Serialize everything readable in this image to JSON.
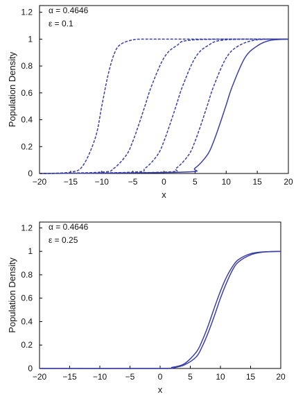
{
  "chart_data": [
    {
      "type": "line",
      "title": "",
      "xlabel": "x",
      "ylabel": "Population Density",
      "xlim": [
        -20,
        20
      ],
      "ylim": [
        0,
        1.25
      ],
      "xticks": [
        "−20",
        "−15",
        "−10",
        "−5",
        "0",
        "5",
        "10",
        "15",
        "20"
      ],
      "yticks": [
        "0",
        "0.2",
        "0.4",
        "0.6",
        "0.8",
        "1",
        "1.2"
      ],
      "annotations": [
        "α = 0.4646",
        "ε = 0.1"
      ],
      "grid": false,
      "line_color": "#3a3fa8",
      "series": [
        {
          "style": "dashed",
          "x": [
            -20,
            -15,
            -13,
            -11,
            -10,
            -9,
            -8,
            -7,
            -5,
            -3,
            0,
            20
          ],
          "y": [
            0.0,
            0.01,
            0.06,
            0.27,
            0.5,
            0.73,
            0.89,
            0.96,
            0.995,
            1.0,
            1.0,
            1.0
          ]
        },
        {
          "style": "dashed",
          "x": [
            -20,
            -10,
            -8,
            -6,
            -5,
            -4,
            -3,
            -2,
            0,
            2,
            5,
            20
          ],
          "y": [
            0.0,
            0.01,
            0.04,
            0.14,
            0.24,
            0.37,
            0.51,
            0.65,
            0.86,
            0.95,
            0.995,
            1.0
          ]
        },
        {
          "style": "dashed",
          "x": [
            -20,
            -5,
            -3,
            -1,
            0,
            1,
            2,
            3,
            5,
            7,
            10,
            20
          ],
          "y": [
            0.0,
            0.01,
            0.04,
            0.14,
            0.24,
            0.37,
            0.51,
            0.65,
            0.86,
            0.95,
            0.995,
            1.0
          ]
        },
        {
          "style": "dashed",
          "x": [
            -20,
            0,
            2,
            4,
            5,
            6,
            7,
            8,
            10,
            12,
            15,
            20
          ],
          "y": [
            0.0,
            0.01,
            0.04,
            0.14,
            0.24,
            0.37,
            0.51,
            0.65,
            0.86,
            0.95,
            0.995,
            1.0
          ]
        },
        {
          "style": "solid",
          "x": [
            -20,
            3,
            5,
            7,
            8,
            9,
            10,
            11,
            13,
            15,
            17,
            20
          ],
          "y": [
            0.0,
            0.01,
            0.04,
            0.14,
            0.24,
            0.37,
            0.51,
            0.65,
            0.86,
            0.95,
            0.99,
            1.0
          ]
        }
      ]
    },
    {
      "type": "line",
      "title": "",
      "xlabel": "x",
      "ylabel": "Population Density",
      "xlim": [
        -20,
        20
      ],
      "ylim": [
        0,
        1.25
      ],
      "xticks": [
        "−20",
        "−15",
        "−10",
        "−5",
        "0",
        "5",
        "10",
        "15",
        "20"
      ],
      "yticks": [
        "0",
        "0.2",
        "0.4",
        "0.6",
        "0.8",
        "1",
        "1.2"
      ],
      "annotations": [
        "α = 0.4646",
        "ε = 0.25"
      ],
      "grid": false,
      "line_color": "#3a3fa8",
      "series": [
        {
          "style": "solid",
          "x": [
            -20,
            0,
            2,
            4,
            6,
            7,
            8,
            9,
            10,
            11,
            12,
            13,
            15,
            17,
            20
          ],
          "y": [
            0.0,
            0.0,
            0.01,
            0.04,
            0.14,
            0.24,
            0.37,
            0.52,
            0.66,
            0.78,
            0.87,
            0.93,
            0.98,
            0.995,
            1.0
          ]
        },
        {
          "style": "solid",
          "x": [
            -20,
            0,
            2,
            4,
            6,
            7,
            8,
            9,
            10,
            11,
            12,
            13,
            15,
            17,
            20
          ],
          "y": [
            0.0,
            0.0,
            0.005,
            0.03,
            0.1,
            0.19,
            0.31,
            0.45,
            0.6,
            0.73,
            0.84,
            0.91,
            0.97,
            0.993,
            1.0
          ]
        }
      ]
    }
  ]
}
